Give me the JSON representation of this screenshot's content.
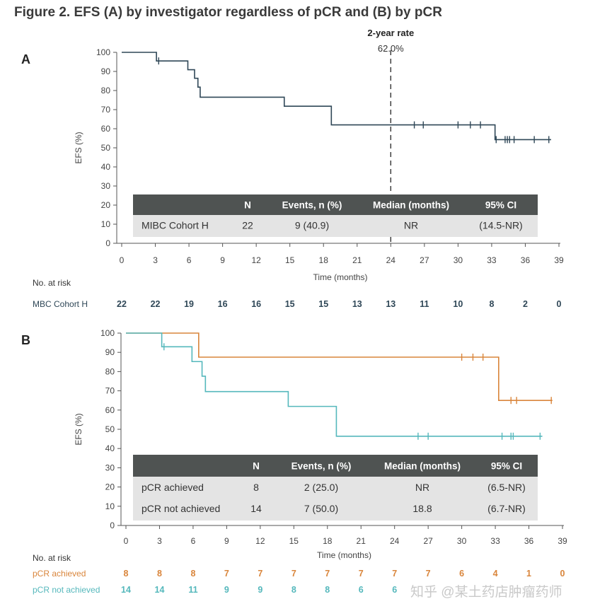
{
  "title": "Figure 2. EFS (A) by investigator regardless of pCR and (B) by pCR",
  "chart_data": [
    {
      "panel": "A",
      "type": "line",
      "subtype": "kaplan-meier",
      "xlabel": "Time (months)",
      "ylabel": "EFS (%)",
      "xlim": [
        0,
        39
      ],
      "ylim": [
        0,
        100
      ],
      "xticks": [
        0,
        3,
        6,
        9,
        12,
        15,
        18,
        21,
        24,
        27,
        30,
        33,
        36,
        39
      ],
      "yticks": [
        0,
        10,
        20,
        30,
        40,
        50,
        60,
        70,
        80,
        90,
        100
      ],
      "annotation": {
        "label": "2-year rate",
        "value": "62.0%",
        "x": 24
      },
      "series": [
        {
          "name": "MIBC Cohort H",
          "color": "#2f4757",
          "steps": [
            [
              0,
              100
            ],
            [
              3.1,
              95.5
            ],
            [
              5.9,
              90.9
            ],
            [
              6.5,
              86.4
            ],
            [
              6.8,
              81.8
            ],
            [
              7.0,
              76.5
            ],
            [
              14.5,
              71.8
            ],
            [
              18.7,
              62.0
            ],
            [
              33.3,
              54.3
            ],
            [
              38.3,
              54.3
            ]
          ],
          "censors": [
            [
              3.3,
              95.5
            ],
            [
              26.1,
              62.0
            ],
            [
              26.9,
              62.0
            ],
            [
              30.0,
              62.0
            ],
            [
              31.1,
              62.0
            ],
            [
              32.0,
              62.0
            ],
            [
              33.4,
              54.3
            ],
            [
              34.2,
              54.3
            ],
            [
              34.4,
              54.3
            ],
            [
              34.6,
              54.3
            ],
            [
              35.0,
              54.3
            ],
            [
              36.8,
              54.3
            ],
            [
              38.1,
              54.3
            ]
          ]
        }
      ],
      "table": {
        "headers": [
          "",
          "N",
          "Events, n (%)",
          "Median (months)",
          "95% CI"
        ],
        "rows": [
          [
            "MIBC Cohort H",
            "22",
            "9 (40.9)",
            "NR",
            "(14.5-NR)"
          ]
        ]
      },
      "risk": {
        "title": "No. at risk",
        "rows": [
          {
            "label": "MBC Cohort H",
            "color": "#2f4757",
            "values": [
              "22",
              "22",
              "19",
              "16",
              "16",
              "15",
              "15",
              "13",
              "13",
              "11",
              "10",
              "8",
              "2",
              "0"
            ]
          }
        ]
      }
    },
    {
      "panel": "B",
      "type": "line",
      "subtype": "kaplan-meier",
      "xlabel": "Time (months)",
      "ylabel": "EFS (%)",
      "xlim": [
        0,
        39
      ],
      "ylim": [
        0,
        100
      ],
      "xticks": [
        0,
        3,
        6,
        9,
        12,
        15,
        18,
        21,
        24,
        27,
        30,
        33,
        36,
        39
      ],
      "yticks": [
        0,
        10,
        20,
        30,
        40,
        50,
        60,
        70,
        80,
        90,
        100
      ],
      "series": [
        {
          "name": "pCR achieved",
          "color": "#d9853b",
          "steps": [
            [
              0,
              100
            ],
            [
              6.5,
              87.5
            ],
            [
              33.3,
              65.0
            ],
            [
              38.1,
              65.0
            ]
          ],
          "censors": [
            [
              30.0,
              87.5
            ],
            [
              31.0,
              87.5
            ],
            [
              31.9,
              87.5
            ],
            [
              34.4,
              65.0
            ],
            [
              34.9,
              65.0
            ],
            [
              38.0,
              65.0
            ]
          ]
        },
        {
          "name": "pCR not achieved",
          "color": "#55b8bc",
          "steps": [
            [
              0,
              100
            ],
            [
              3.2,
              92.9
            ],
            [
              5.9,
              85.2
            ],
            [
              6.8,
              77.6
            ],
            [
              7.1,
              69.6
            ],
            [
              14.5,
              61.9
            ],
            [
              18.8,
              46.4
            ],
            [
              37.2,
              46.4
            ]
          ],
          "censors": [
            [
              3.4,
              92.9
            ],
            [
              26.1,
              46.4
            ],
            [
              27.0,
              46.4
            ],
            [
              33.6,
              46.4
            ],
            [
              34.4,
              46.4
            ],
            [
              34.6,
              46.4
            ],
            [
              37.0,
              46.4
            ]
          ]
        }
      ],
      "table": {
        "headers": [
          "",
          "N",
          "Events, n (%)",
          "Median (months)",
          "95% CI"
        ],
        "rows": [
          [
            "pCR achieved",
            "8",
            "2 (25.0)",
            "NR",
            "(6.5-NR)"
          ],
          [
            "pCR not achieved",
            "14",
            "7 (50.0)",
            "18.8",
            "(6.7-NR)"
          ]
        ]
      },
      "risk": {
        "title": "No. at risk",
        "rows": [
          {
            "label": "pCR achieved",
            "color": "#d9853b",
            "values": [
              "8",
              "8",
              "8",
              "7",
              "7",
              "7",
              "7",
              "7",
              "7",
              "7",
              "6",
              "4",
              "1",
              "0"
            ]
          },
          {
            "label": "pCR not achieved",
            "color": "#55b8bc",
            "values": [
              "14",
              "14",
              "11",
              "9",
              "9",
              "8",
              "8",
              "6",
              "6",
              "",
              "",
              "",
              "",
              ""
            ]
          }
        ]
      }
    }
  ],
  "watermark": "知乎 @某土药店肿瘤药师"
}
